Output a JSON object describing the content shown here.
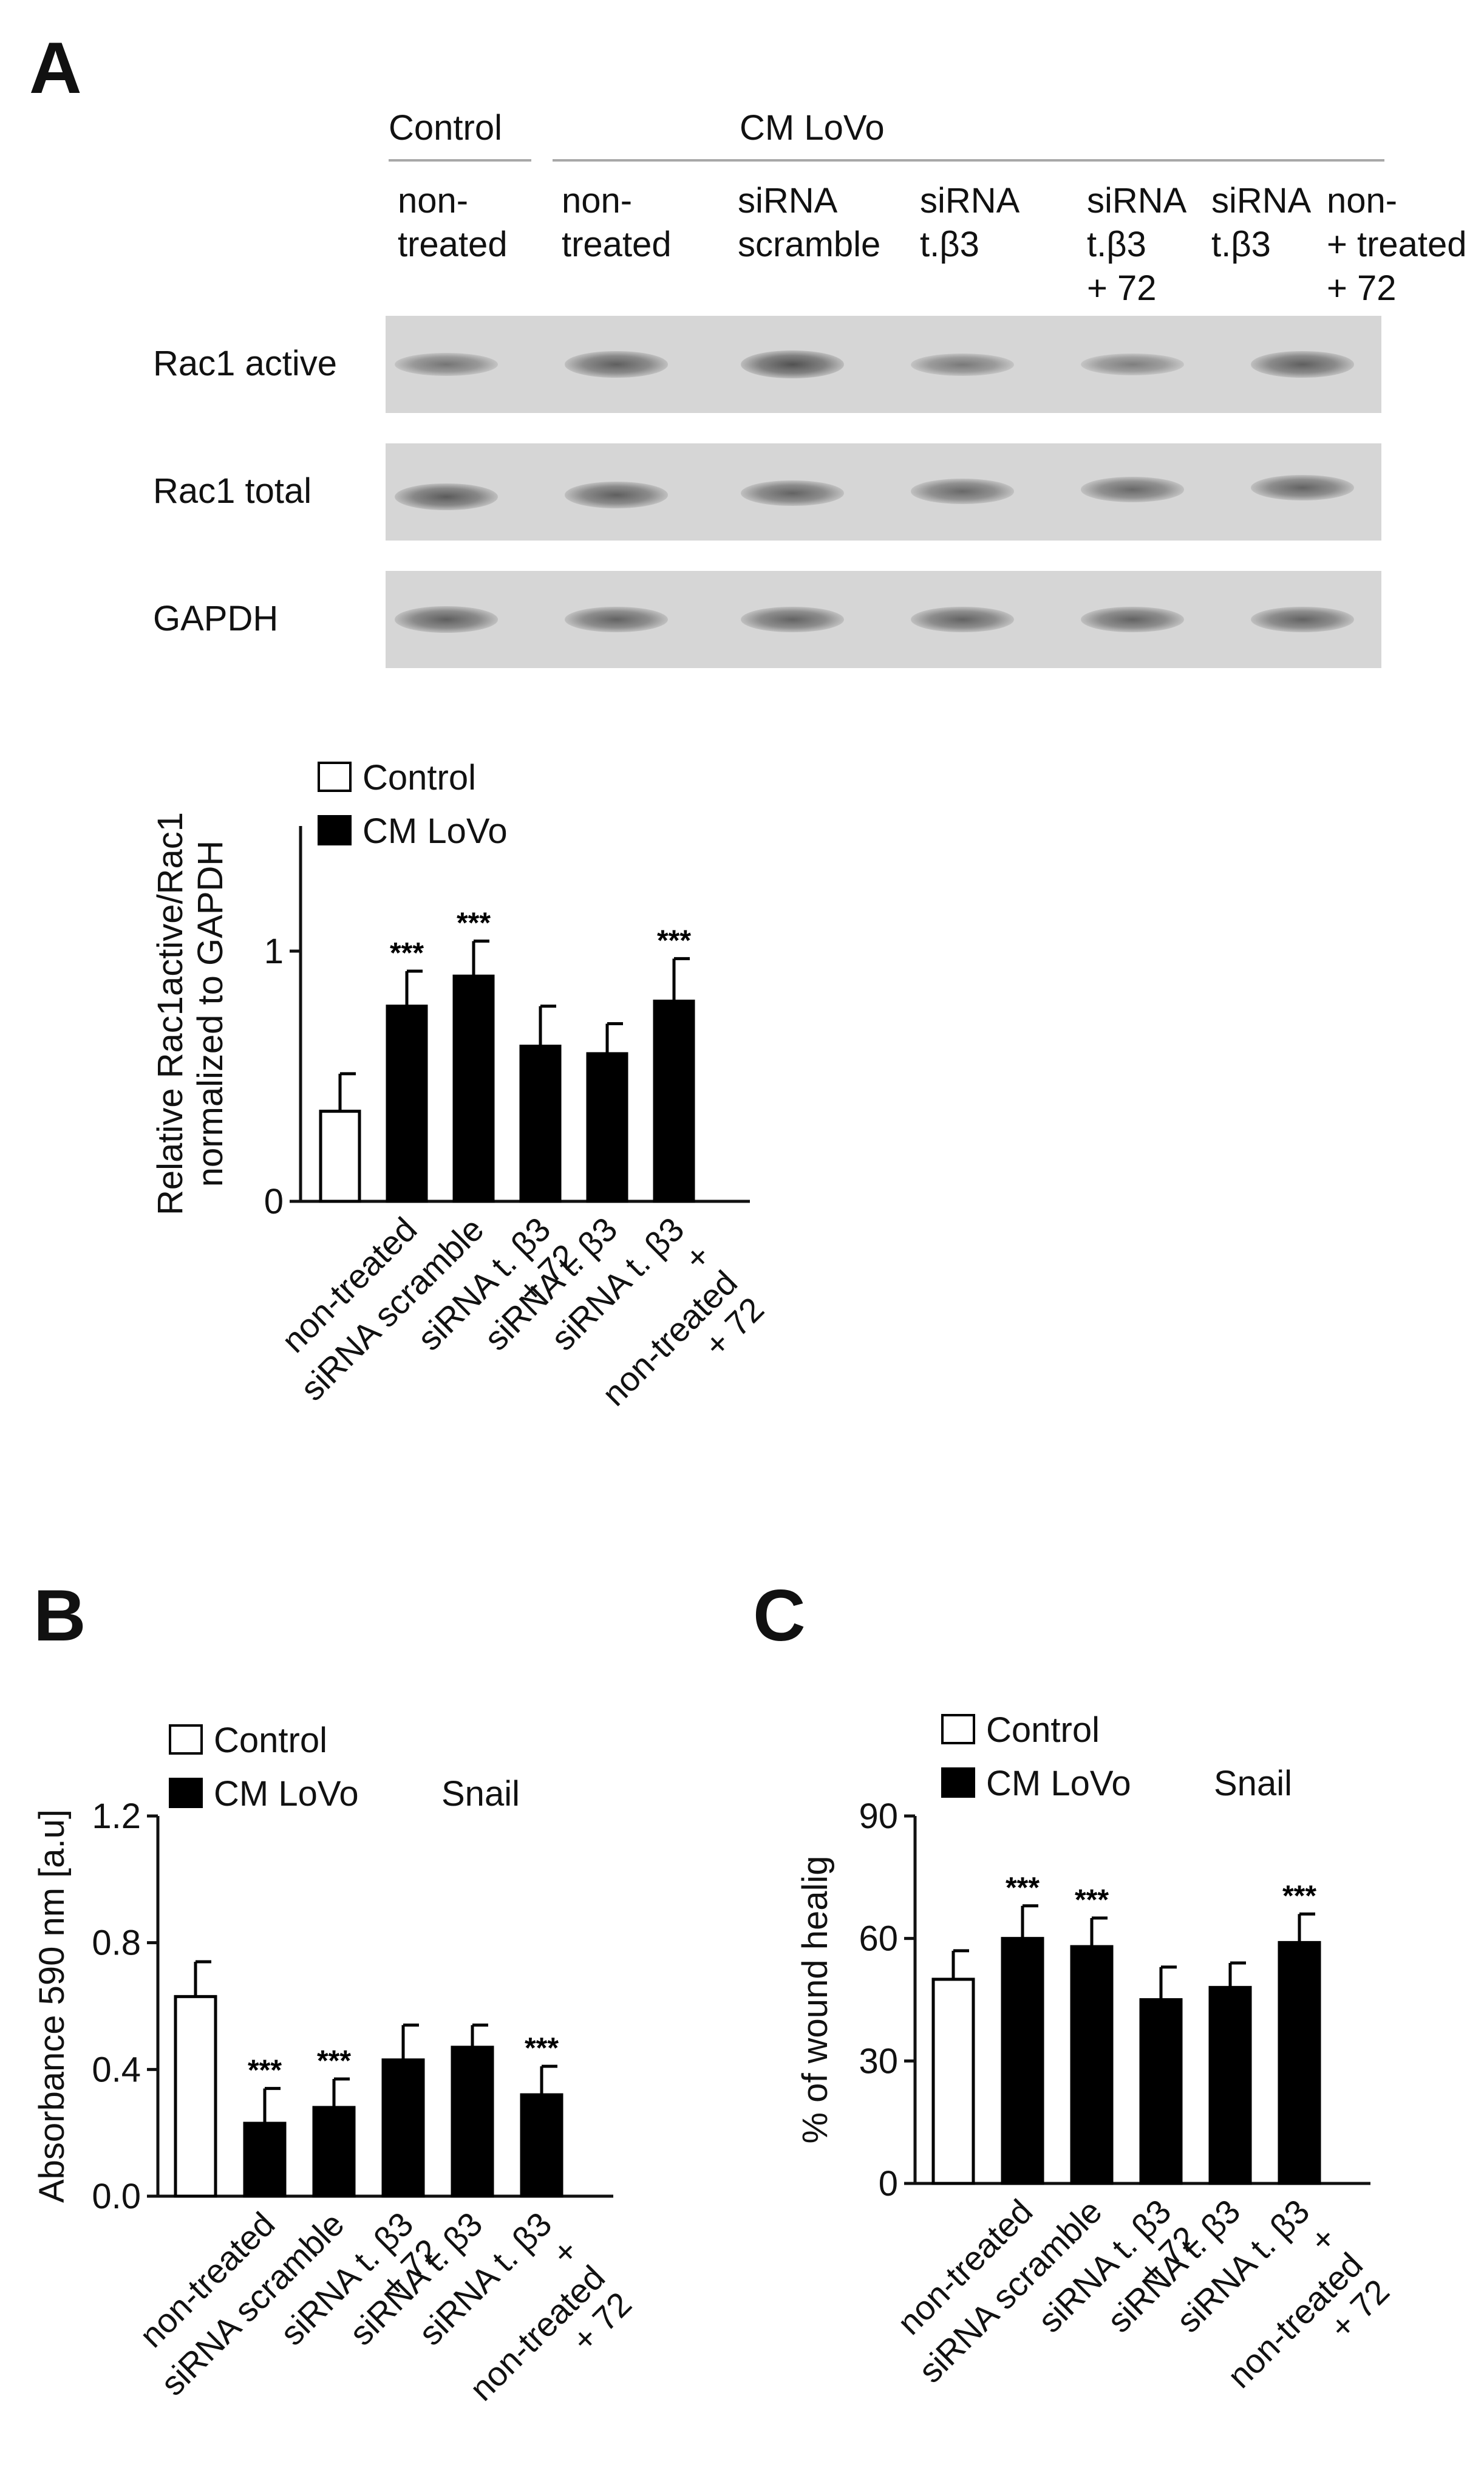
{
  "panel_a": {
    "letter": "A",
    "group_control": "Control",
    "group_cm": "CM LoVo",
    "lanes": [
      [
        "non-",
        "treated"
      ],
      [
        "non-",
        "treated"
      ],
      [
        "siRNA",
        "scramble"
      ],
      [
        "siRNA",
        "t.β3"
      ],
      [
        "siRNA",
        "t.β3",
        "+ 72"
      ],
      [
        "siRNA",
        "t.β3"
      ],
      [
        "non-",
        "+ treated",
        "+ 72"
      ]
    ],
    "rows": [
      {
        "label": "Rac1 active",
        "intensity": [
          0.55,
          0.8,
          0.95,
          0.5,
          0.45,
          0.8
        ]
      },
      {
        "label": "Rac1 total",
        "intensity": [
          0.85,
          0.8,
          0.75,
          0.7,
          0.7,
          0.75
        ]
      },
      {
        "label": "GAPDH",
        "intensity": [
          0.8,
          0.75,
          0.75,
          0.75,
          0.75,
          0.75
        ]
      }
    ]
  },
  "chart_data": [
    {
      "type": "bar",
      "ylabel": [
        "Relative Rac1active/Rac1",
        "normalized to GAPDH"
      ],
      "ylim": [
        0,
        1.5
      ],
      "yticks": [
        "0",
        "1"
      ],
      "ytick_values": [
        0,
        1
      ],
      "legend": [
        "Control",
        "CM LoVo"
      ],
      "categories": [
        [
          "non-treated"
        ],
        [
          "siRNA scramble"
        ],
        [
          "siRNA t. β3",
          "+ 72"
        ],
        [
          "siRNA t. β3"
        ],
        [
          "siRNA t. β3",
          "+",
          "non-treated",
          "+ 72"
        ]
      ],
      "bars": [
        {
          "slot": 0,
          "series": "Control",
          "value": 0.36,
          "err": 0.15,
          "sig": ""
        },
        {
          "slot": 1,
          "series": "CM LoVo",
          "value": 0.78,
          "err": 0.14,
          "sig": "***"
        },
        {
          "slot": 2,
          "series": "CM LoVo",
          "value": 0.9,
          "err": 0.14,
          "sig": "***"
        },
        {
          "slot": 3,
          "series": "CM LoVo",
          "value": 0.62,
          "err": 0.16,
          "sig": ""
        },
        {
          "slot": 4,
          "series": "CM LoVo",
          "value": 0.59,
          "err": 0.12,
          "sig": ""
        },
        {
          "slot": 5,
          "series": "CM LoVo",
          "value": 0.8,
          "err": 0.17,
          "sig": "***"
        }
      ]
    },
    {
      "type": "bar",
      "letter": "B",
      "ylabel": [
        "Absorbance 590 nm [a.u]"
      ],
      "ylim": [
        0,
        1.2
      ],
      "yticks": [
        "0.0",
        "0.4",
        "0.8",
        "1.2"
      ],
      "ytick_values": [
        0,
        0.4,
        0.8,
        1.2
      ],
      "legend": [
        "Control",
        "CM LoVo"
      ],
      "legend_note": "Snail",
      "categories": [
        [
          "non-treated"
        ],
        [
          "siRNA scramble"
        ],
        [
          "siRNA t. β3",
          "+ 72"
        ],
        [
          "siRNA t. β3"
        ],
        [
          "siRNA t. β3",
          "+",
          "non-treated",
          "+ 72"
        ]
      ],
      "bars": [
        {
          "slot": 0,
          "series": "Control",
          "value": 0.63,
          "err": 0.11,
          "sig": ""
        },
        {
          "slot": 1,
          "series": "CM LoVo",
          "value": 0.23,
          "err": 0.11,
          "sig": "***"
        },
        {
          "slot": 2,
          "series": "CM LoVo",
          "value": 0.28,
          "err": 0.09,
          "sig": "***"
        },
        {
          "slot": 3,
          "series": "CM LoVo",
          "value": 0.43,
          "err": 0.11,
          "sig": ""
        },
        {
          "slot": 4,
          "series": "CM LoVo",
          "value": 0.47,
          "err": 0.07,
          "sig": ""
        },
        {
          "slot": 5,
          "series": "CM LoVo",
          "value": 0.32,
          "err": 0.09,
          "sig": "***"
        }
      ]
    },
    {
      "type": "bar",
      "letter": "C",
      "ylabel": [
        "% of wound healig"
      ],
      "ylim": [
        0,
        90
      ],
      "yticks": [
        "0",
        "30",
        "60",
        "90"
      ],
      "ytick_values": [
        0,
        30,
        60,
        90
      ],
      "legend": [
        "Control",
        "CM LoVo"
      ],
      "legend_note": "Snail",
      "categories": [
        [
          "non-treated"
        ],
        [
          "siRNA scramble"
        ],
        [
          "siRNA t. β3",
          "+ 72"
        ],
        [
          "siRNA t. β3"
        ],
        [
          "siRNA t. β3",
          "+",
          "non-treated",
          "+ 72"
        ]
      ],
      "bars": [
        {
          "slot": 0,
          "series": "Control",
          "value": 50,
          "err": 7,
          "sig": ""
        },
        {
          "slot": 1,
          "series": "CM LoVo",
          "value": 60,
          "err": 8,
          "sig": "***"
        },
        {
          "slot": 2,
          "series": "CM LoVo",
          "value": 58,
          "err": 7,
          "sig": "***"
        },
        {
          "slot": 3,
          "series": "CM LoVo",
          "value": 45,
          "err": 8,
          "sig": ""
        },
        {
          "slot": 4,
          "series": "CM LoVo",
          "value": 48,
          "err": 6,
          "sig": ""
        },
        {
          "slot": 5,
          "series": "CM LoVo",
          "value": 59,
          "err": 7,
          "sig": "***"
        }
      ]
    }
  ]
}
